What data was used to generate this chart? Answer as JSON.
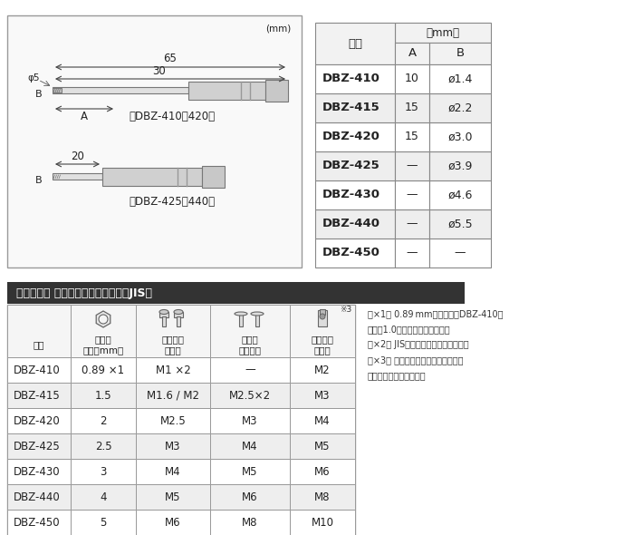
{
  "bg_color": "#ffffff",
  "top_table": {
    "title": "品番",
    "unit_label": "（mm）",
    "col_headers": [
      "A",
      "B"
    ],
    "rows": [
      [
        "DBZ-410",
        "10",
        "ø1.4"
      ],
      [
        "DBZ-415",
        "15",
        "ø2.2"
      ],
      [
        "DBZ-420",
        "15",
        "ø3.0"
      ],
      [
        "DBZ-425",
        "—",
        "ø3.9"
      ],
      [
        "DBZ-430",
        "—",
        "ø4.6"
      ],
      [
        "DBZ-440",
        "—",
        "ø5.5"
      ],
      [
        "DBZ-450",
        "—",
        "—"
      ]
    ],
    "shaded_rows": [
      1,
      3,
      5
    ]
  },
  "bottom_table": {
    "section_title": "ネジモグラ 極短・ミドル　対応表（JIS）",
    "col_headers": [
      "品番",
      "六角穴\n対辺（mm）",
      "キャップ\nボルト",
      "ボタン\n皿ボルト",
      "ホーロー\nセット"
    ],
    "note3": "※3",
    "rows": [
      [
        "DBZ-410",
        "0.89 ×1",
        "M1 ×2",
        "—",
        "M2"
      ],
      [
        "DBZ-415",
        "1.5",
        "M1.6 / M2",
        "M2.5×2",
        "M3"
      ],
      [
        "DBZ-420",
        "2",
        "M2.5",
        "M3",
        "M4"
      ],
      [
        "DBZ-425",
        "2.5",
        "M3",
        "M4",
        "M5"
      ],
      [
        "DBZ-430",
        "3",
        "M4",
        "M5",
        "M6"
      ],
      [
        "DBZ-440",
        "4",
        "M5",
        "M6",
        "M8"
      ],
      [
        "DBZ-450",
        "5",
        "M6",
        "M8",
        "M10"
      ]
    ],
    "shaded_rows": [
      1,
      3,
      5
    ]
  },
  "notes": [
    "（×1） 0.89 mm用ビット（DBZ-410）",
    "には「1.0」と印字しています。",
    "（×2） JISに準拠しないサイズです。",
    "（×3） 固着したホーローセットには",
    "使用しないでください。"
  ],
  "diagram_unit": "(mm)",
  "dim_65": "65",
  "dim_30": "30",
  "dim_A": "A",
  "dim_phi5": "φ5",
  "dim_B": "B",
  "label_top": "『DBZ-410～420』",
  "dim_20": "20",
  "label_bot": "『DBZ-425～440』",
  "shade_color": "#e8e8e8",
  "header_shade": "#d0d0d0",
  "border_color": "#555555",
  "text_color": "#222222",
  "title_bg": "#333333",
  "title_fg": "#ffffff"
}
